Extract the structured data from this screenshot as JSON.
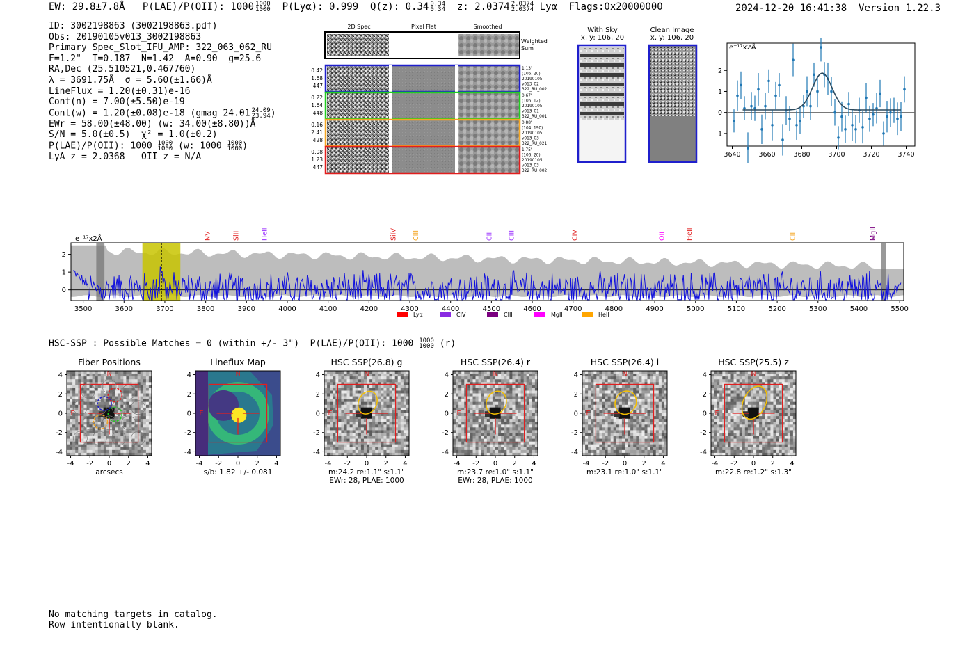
{
  "header": {
    "ew": "EW: 29.8±7.8Å",
    "plae": "P(LAE)/P(OII): 1000",
    "plae_sup": "1000",
    "plae_sub": "1000",
    "plya": "P(Lyα): 0.999",
    "qz": "Q(z): 0.34",
    "qz_sup": "0.34",
    "qz_sub": "0.34",
    "z": "z: 2.0374",
    "z_sup": "2.0374",
    "z_sub": "2.0374",
    "z_line": "Lyα",
    "flags": "Flags:0x20000000",
    "timestamp": "2024-12-20 16:41:38",
    "version": "Version 1.22.3"
  },
  "info": {
    "id": "ID: 3002198863 (3002198863.pdf)",
    "obs": "Obs: 20190105v013_3002198863",
    "primary": "Primary Spec_Slot_IFU_AMP: 322_063_062_RU",
    "params": "F=1.2\"  T=0.187  N=1.42  A=0.90  g=25.6",
    "radec": "RA,Dec (25.510521,0.467760)",
    "lambda_sigma": "λ = 3691.75Å  σ = 5.60(±1.66)Å",
    "lineflux": "LineFlux = 1.20(±0.31)e-16",
    "contn": "Cont(n) = 7.00(±5.50)e-19",
    "contw": "Cont(w) = 1.20(±0.08)e-18 (gmag 24.01",
    "contw_sup": "24.09",
    "contw_sub": "23.94",
    "ewr": "EWr = 58.00(±48.00) (w: 34.00(±8.80))Å",
    "sn": "S/N = 5.0(±0.5)  χ² = 1.0(±0.2)",
    "plae2": "P(LAE)/P(OII): 1000",
    "plae2_sup": "1000",
    "plae2_sub": "1000",
    "plae2_w": "(w: 1000",
    "plae2_w_sup": "1000",
    "plae2_w_sub": "1000",
    "lya_z": "LyA z = 2.0368   OII z = N/A"
  },
  "fiber_table": {
    "headers": [
      "2D Spec",
      "Pixel Flat",
      "Smoothed"
    ],
    "weighted_label": [
      "Weighted",
      "Sum"
    ],
    "rows": [
      {
        "color": "#1f1fcc",
        "left": [
          "0.42",
          "1.68",
          "447"
        ],
        "right": [
          "1.13\"",
          "(106, 20)",
          "20190105",
          "v013_02",
          "322_RU_002"
        ]
      },
      {
        "color": "#22cc22",
        "left": [
          "0.22",
          "1.64",
          "448"
        ],
        "right": [
          "0.67\"",
          "(106, 12)",
          "20190105",
          "v013_01",
          "322_RU_001"
        ]
      },
      {
        "color": "#f5a623",
        "left": [
          "0.16",
          "2.41",
          "428"
        ],
        "right": [
          "0.88\"",
          "(104, 190)",
          "20190105",
          "v013_03",
          "322_RU_021"
        ]
      },
      {
        "color": "#e21e1e",
        "left": [
          "0.08",
          "1.23",
          "447"
        ],
        "right": [
          "1.75\"",
          "(106, 20)",
          "20190105",
          "v013_03",
          "322_RU_002"
        ]
      }
    ]
  },
  "ccd_panels": {
    "with_sky": [
      "With Sky",
      "x, y: 106, 20"
    ],
    "clean": [
      "Clean Image",
      "x, y: 106, 20"
    ]
  },
  "zoom_chart": {
    "type": "scatter",
    "ylabel": "e⁻¹⁷x2Å",
    "xlim": [
      3637,
      3745
    ],
    "ylim": [
      -1.6,
      3.3
    ],
    "xticks": [
      3640,
      3660,
      3680,
      3700,
      3720,
      3740
    ],
    "yticks": [
      -1,
      0,
      1,
      2
    ],
    "points": [
      [
        3641,
        -0.4
      ],
      [
        3643,
        0.8
      ],
      [
        3645,
        1.3
      ],
      [
        3647,
        0.2
      ],
      [
        3649,
        -1.7
      ],
      [
        3651,
        0.3
      ],
      [
        3653,
        0.2
      ],
      [
        3655,
        1.1
      ],
      [
        3657,
        -0.8
      ],
      [
        3659,
        0.3
      ],
      [
        3661,
        1.5
      ],
      [
        3663,
        -0.6
      ],
      [
        3665,
        0.8
      ],
      [
        3667,
        1.3
      ],
      [
        3669,
        -1.3
      ],
      [
        3671,
        0.1
      ],
      [
        3673,
        -0.3
      ],
      [
        3675,
        2.5
      ],
      [
        3677,
        -0.6
      ],
      [
        3679,
        -0.4
      ],
      [
        3681,
        0.3
      ],
      [
        3683,
        1.0
      ],
      [
        3685,
        0.3
      ],
      [
        3687,
        1.8
      ],
      [
        3689,
        1.0
      ],
      [
        3691,
        3.1
      ],
      [
        3693,
        1.8
      ],
      [
        3695,
        1.6
      ],
      [
        3697,
        1.0
      ],
      [
        3699,
        0.0
      ],
      [
        3701,
        -1.2
      ],
      [
        3703,
        -0.2
      ],
      [
        3705,
        -0.8
      ],
      [
        3707,
        0.4
      ],
      [
        3709,
        -0.6
      ],
      [
        3711,
        -0.8
      ],
      [
        3713,
        0.1
      ],
      [
        3715,
        -0.7
      ],
      [
        3717,
        0.7
      ],
      [
        3719,
        -0.3
      ],
      [
        3721,
        -0.1
      ],
      [
        3723,
        0.2
      ],
      [
        3725,
        0.9
      ],
      [
        3727,
        -1.0
      ],
      [
        3729,
        -0.2
      ],
      [
        3731,
        0.0
      ],
      [
        3733,
        0.1
      ],
      [
        3735,
        -0.3
      ],
      [
        3737,
        -0.2
      ],
      [
        3739,
        1.1
      ]
    ],
    "fit": {
      "center": 3691.75,
      "sigma": 5.6,
      "amplitude": 1.75,
      "baseline": 0.12,
      "range": [
        3646,
        3737
      ]
    }
  },
  "chart_data": {
    "type": "line",
    "title": "",
    "xlabel": "",
    "ylabel": "e⁻¹⁷x2Å",
    "xlim": [
      3470,
      5510
    ],
    "ylim": [
      -0.6,
      2.65
    ],
    "xticks": [
      3500,
      3600,
      3700,
      3800,
      3900,
      4000,
      4100,
      4200,
      4300,
      4400,
      4500,
      4600,
      4700,
      4800,
      4900,
      5000,
      5100,
      5200,
      5300,
      5400,
      5500
    ],
    "yticks": [
      0,
      1,
      2
    ],
    "series_name": "spectrum",
    "highlight_band": [
      3645,
      3738
    ],
    "emission_line": 3691.75,
    "masked_regions": [
      [
        3532,
        3552
      ],
      [
        5455,
        5467
      ]
    ],
    "line_labels": [
      {
        "name": "NV",
        "wave": 3805,
        "color": "#e21e1e"
      },
      {
        "name": "SiII",
        "wave": 3875,
        "color": "#e21e1e"
      },
      {
        "name": "HeII",
        "wave": 3945,
        "color": "#9b30ff"
      },
      {
        "name": "SiIV",
        "wave": 4260,
        "color": "#e21e1e"
      },
      {
        "name": "CIII",
        "wave": 4315,
        "color": "#f5a623"
      },
      {
        "name": "CII",
        "wave": 4495,
        "color": "#9b30ff"
      },
      {
        "name": "CIII",
        "wave": 4550,
        "color": "#9b30ff"
      },
      {
        "name": "CIV",
        "wave": 4705,
        "color": "#e21e1e"
      },
      {
        "name": "OII",
        "wave": 4918,
        "color": "#ff00ff"
      },
      {
        "name": "HeII",
        "wave": 4985,
        "color": "#e21e1e"
      },
      {
        "name": "CII",
        "wave": 5238,
        "color": "#f5a623"
      },
      {
        "name": "MgII",
        "wave": 5435,
        "color": "#7b0080"
      }
    ],
    "legend": [
      {
        "label": "Lyα",
        "color": "#ff0000"
      },
      {
        "label": "CIV",
        "color": "#8a2be2"
      },
      {
        "label": "CIII",
        "color": "#7b0080"
      },
      {
        "label": "MgII",
        "color": "#ff00ff"
      },
      {
        "label": "HeII",
        "color": "#ffa500"
      }
    ]
  },
  "hsc": {
    "line_text": "HSC-SSP : Possible Matches = 0 (within +/- 3\")  P(LAE)/P(OII): 1000",
    "line_sup": "1000",
    "line_sub": "1000",
    "line_suffix": "(r)",
    "ticks": [
      -4,
      -2,
      0,
      2,
      4
    ],
    "panels": [
      {
        "title": "Fiber Positions",
        "captions": [
          "arcsecs"
        ],
        "kind": "fiber"
      },
      {
        "title": "Lineflux Map",
        "captions": [
          "s/b: 1.82 +/- 0.081"
        ],
        "kind": "lineflux"
      },
      {
        "title": "HSC SSP(26.8) g",
        "captions": [
          "m:24.2  re:1.1\"  s:1.1\"",
          "EWr: 28, PLAE: 1000"
        ],
        "kind": "hsc"
      },
      {
        "title": "HSC SSP(26.4) r",
        "captions": [
          "m:23.7  re:1.0\"  s:1.1\"",
          "EWr: 28, PLAE: 1000"
        ],
        "kind": "hsc"
      },
      {
        "title": "HSC SSP(26.4) i",
        "captions": [
          "m:23.1  re:1.0\"  s:1.1\""
        ],
        "kind": "hsc"
      },
      {
        "title": "HSC SSP(25.5) z",
        "captions": [
          "m:22.8  re:1.2\"  s:1.3\""
        ],
        "kind": "hsc"
      }
    ],
    "compass_n": "N",
    "compass_e": "E"
  },
  "footer": {
    "line1": "No matching targets in catalog.",
    "line2": "Row intentionally blank."
  }
}
